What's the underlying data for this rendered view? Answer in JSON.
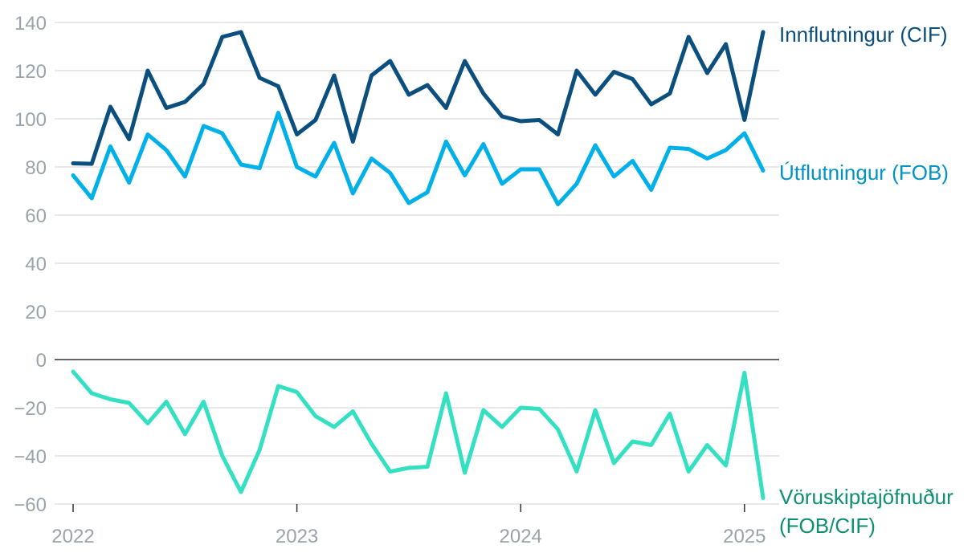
{
  "chart_data": {
    "type": "line",
    "title": "",
    "xlabel": "",
    "ylabel": "",
    "ylim": [
      -60,
      140
    ],
    "y_ticks": [
      140,
      120,
      100,
      80,
      60,
      40,
      20,
      0,
      -20,
      -40,
      -60
    ],
    "y_tick_labels": [
      "140",
      "120",
      "100",
      "80",
      "60",
      "40",
      "20",
      "0",
      "−20",
      "−40",
      "−60"
    ],
    "x_ticks": [
      "2022",
      "2023",
      "2024",
      "2025"
    ],
    "x_start": "2022-01",
    "x_interval": "month",
    "grid": true,
    "zero_line": true,
    "legend": "inline labels at right end of lines",
    "colors": {
      "grid": "#dcdcdc",
      "zero_line": "#333333",
      "axis_ticks": "#9aa3ab"
    },
    "series": [
      {
        "name": "Innflutningur (CIF)",
        "color": "#0b4f7e",
        "label_color": "#0b4f7e",
        "values": [
          81.5,
          81.3,
          105,
          91.5,
          120,
          104.5,
          107,
          114.5,
          134,
          136,
          117,
          113.5,
          93.5,
          99.5,
          118,
          90.5,
          118,
          124,
          110,
          114,
          104.5,
          124,
          110.5,
          101,
          99,
          99.5,
          93.5,
          120,
          110,
          119.5,
          116.5,
          106,
          110.5,
          134,
          119,
          131,
          99.5,
          136
        ]
      },
      {
        "name": "Útflutningur (FOB)",
        "color": "#00b0e8",
        "label_color": "#0093c8",
        "values": [
          76.5,
          67,
          88.5,
          73.5,
          93.5,
          87,
          76,
          97,
          94,
          81,
          79.5,
          102.5,
          80,
          76,
          90,
          69,
          83.5,
          77.5,
          65,
          69.5,
          90.5,
          76.5,
          89.5,
          73,
          79,
          79,
          64.5,
          73,
          89,
          76,
          82.5,
          70.5,
          88,
          87.5,
          83.5,
          87,
          94,
          78.5
        ]
      },
      {
        "name": "Vöruskiptajöfnuður (FOB/CIF)",
        "name_lines": [
          "Vöruskiptajöfnuður",
          "(FOB/CIF)"
        ],
        "color": "#34e0c2",
        "label_color": "#0d8f73",
        "values": [
          -5,
          -14,
          -16.5,
          -18,
          -26.5,
          -17.5,
          -31,
          -17.5,
          -40,
          -55,
          -37.5,
          -11,
          -13.5,
          -23.5,
          -28,
          -21.5,
          -35,
          -46.5,
          -45,
          -44.5,
          -14,
          -47,
          -21,
          -28,
          -20,
          -20.5,
          -29,
          -46.5,
          -21,
          -43,
          -34,
          -35.5,
          -22.5,
          -46.5,
          -35.5,
          -44,
          -5.5,
          -57.5
        ]
      }
    ]
  }
}
